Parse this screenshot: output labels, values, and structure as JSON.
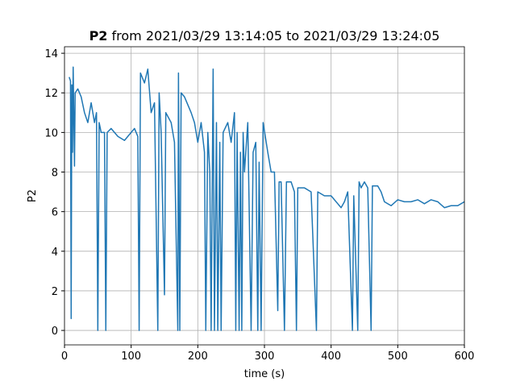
{
  "chart_data": {
    "type": "line",
    "title_bold": "P2",
    "title": "from 2021/03/29 13:14:05 to 2021/03/29 13:24:05",
    "xlabel": "time (s)",
    "ylabel": "P2",
    "color": "#1f77b4",
    "grid": true,
    "xlim": [
      0,
      600
    ],
    "xticks": [
      0,
      100,
      200,
      300,
      400,
      500,
      600
    ],
    "ylim": [
      -0.73,
      14.33
    ],
    "yticks": [
      0,
      2,
      4,
      6,
      8,
      10,
      12,
      14
    ],
    "x": [
      7,
      9,
      10,
      11,
      12,
      13,
      15,
      16,
      20,
      25,
      30,
      35,
      40,
      45,
      48,
      50,
      52,
      55,
      60,
      62,
      64,
      70,
      80,
      90,
      100,
      105,
      110,
      112,
      114,
      120,
      125,
      130,
      135,
      140,
      142,
      145,
      150,
      152,
      160,
      165,
      170,
      171,
      173,
      175,
      180,
      190,
      195,
      200,
      205,
      210,
      212,
      215,
      218,
      220,
      223,
      225,
      228,
      230,
      233,
      235,
      238,
      245,
      250,
      255,
      257,
      259,
      262,
      264,
      266,
      268,
      270,
      275,
      280,
      283,
      287,
      290,
      292,
      295,
      298,
      305,
      310,
      315,
      320,
      322,
      325,
      330,
      333,
      340,
      345,
      348,
      350,
      360,
      370,
      378,
      380,
      390,
      400,
      410,
      415,
      420,
      425,
      432,
      434,
      440,
      442,
      445,
      450,
      455,
      460,
      462,
      470,
      475,
      480,
      490,
      500,
      510,
      520,
      530,
      540,
      550,
      560,
      570,
      580,
      590,
      600
    ],
    "values": [
      12.8,
      12.6,
      0.6,
      12.4,
      9,
      13.3,
      8.3,
      12,
      12.2,
      11.8,
      11,
      10.5,
      11.5,
      10.5,
      11,
      0,
      10.5,
      10,
      10,
      0,
      10,
      10.2,
      9.8,
      9.6,
      10,
      10.2,
      9.8,
      0,
      13,
      12.5,
      13.2,
      11,
      11.5,
      0,
      12,
      10,
      1.8,
      11,
      10.5,
      9.5,
      0,
      13,
      0,
      12,
      11.8,
      11,
      10.5,
      9.5,
      10.5,
      9,
      0,
      10,
      8,
      0,
      13.2,
      0,
      10.5,
      0,
      9.5,
      0,
      10,
      10.5,
      9.5,
      11,
      0,
      10,
      0,
      9,
      0,
      10,
      8,
      10.5,
      0,
      9,
      9.5,
      0,
      8.5,
      0,
      10.5,
      9,
      8,
      8,
      1,
      7.5,
      7.5,
      0,
      7.5,
      7.5,
      7,
      0,
      7.2,
      7.2,
      7,
      0,
      7,
      6.8,
      6.8,
      6.4,
      6.2,
      6.5,
      7,
      0,
      6.8,
      0,
      7.5,
      7.2,
      7.5,
      7.2,
      0,
      7.3,
      7.3,
      7,
      6.5,
      6.3,
      6.6,
      6.5,
      6.5,
      6.6,
      6.4,
      6.6,
      6.5,
      6.2,
      6.3,
      6.3,
      6.5
    ]
  }
}
